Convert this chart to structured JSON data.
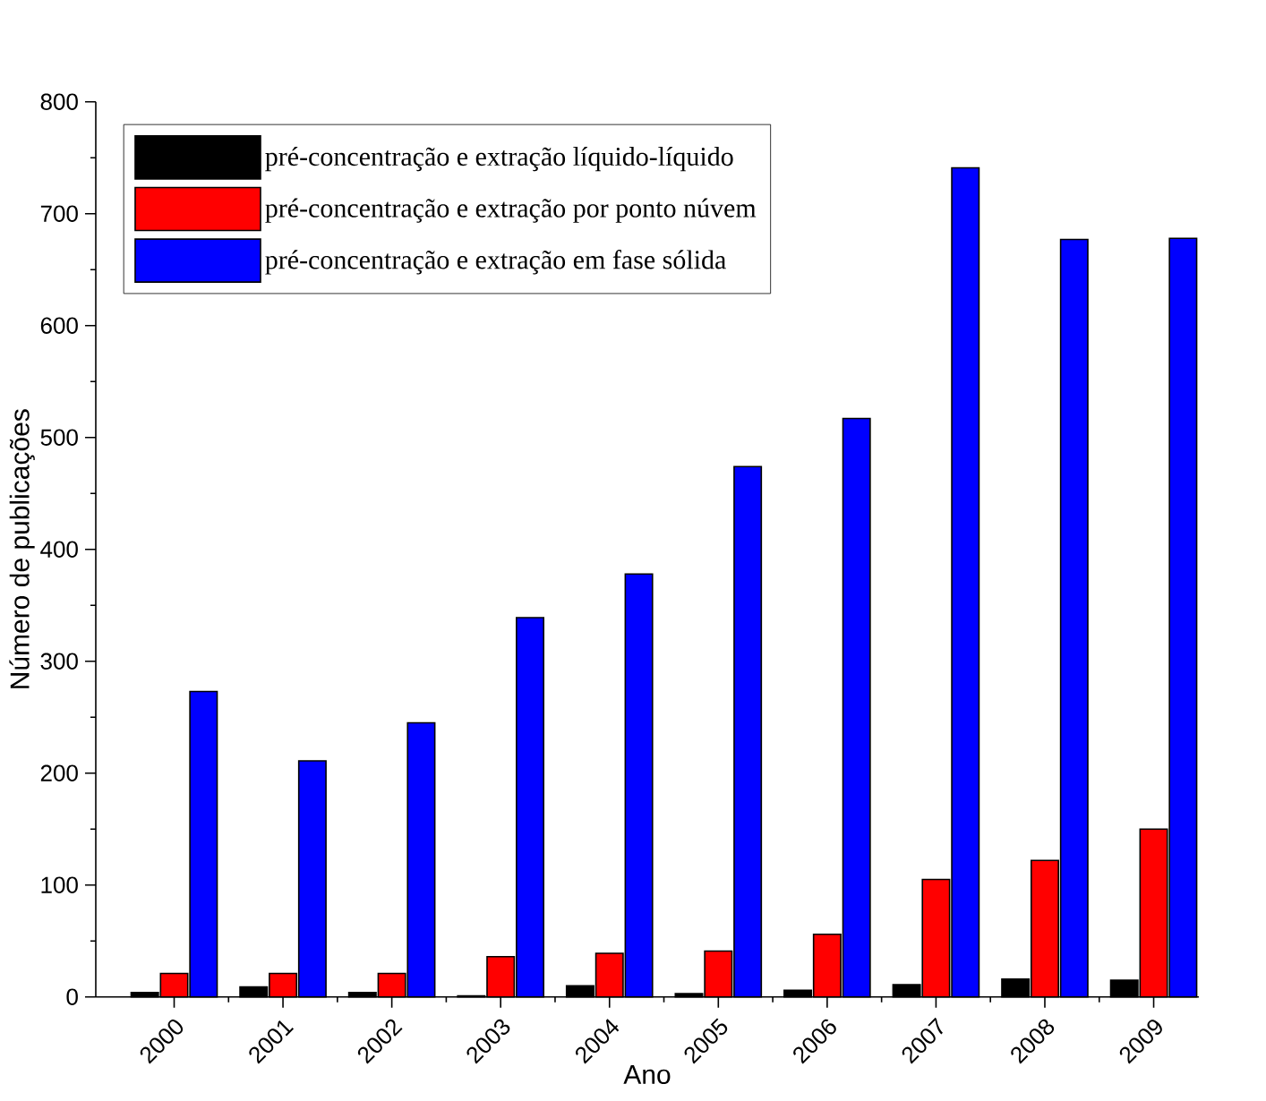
{
  "chart_data": {
    "type": "bar",
    "xlabel": "Ano",
    "ylabel": "Número de publicações",
    "categories": [
      "2000",
      "2001",
      "2002",
      "2003",
      "2004",
      "2005",
      "2006",
      "2007",
      "2008",
      "2009"
    ],
    "series": [
      {
        "name": "pré-concentração e extração líquido-líquido",
        "color": "#000000",
        "values": [
          4,
          9,
          4,
          1,
          10,
          3,
          6,
          11,
          16,
          15
        ]
      },
      {
        "name": "pré-concentração e extração por ponto núvem",
        "color": "#ff0000",
        "values": [
          21,
          21,
          21,
          36,
          39,
          41,
          56,
          105,
          122,
          150
        ]
      },
      {
        "name": "pré-concentração e extração em fase sólida",
        "color": "#0000ff",
        "values": [
          273,
          211,
          245,
          339,
          378,
          474,
          517,
          741,
          677,
          678
        ]
      }
    ],
    "ylim": [
      0,
      800
    ],
    "yticks": [
      0,
      100,
      200,
      300,
      400,
      500,
      600,
      700,
      800
    ],
    "grid": false,
    "legend": "top left"
  }
}
